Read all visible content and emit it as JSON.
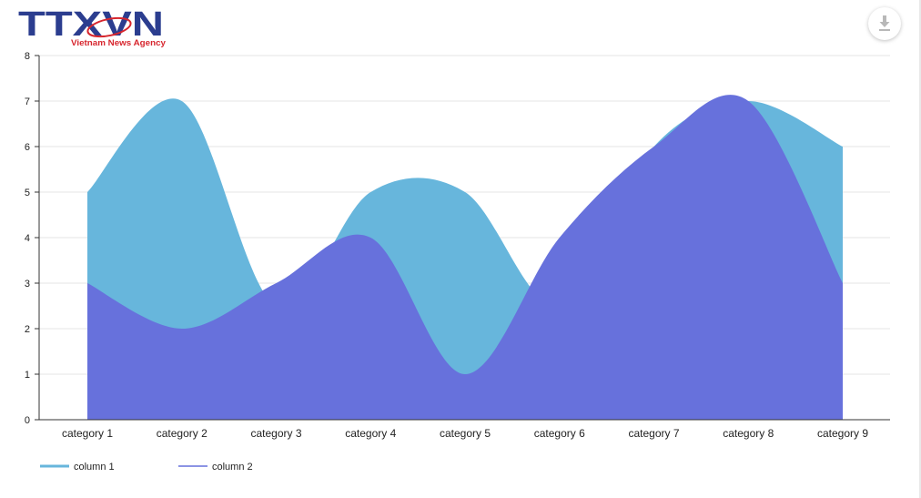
{
  "logo": {
    "brand": "TTXVN",
    "tagline": "Vietnam News Agency"
  },
  "toolbar": {
    "download_icon": "download-icon"
  },
  "colors": {
    "column_1": "#67b6dc",
    "column_2": "#6771dc",
    "grid": "#e6e6e6",
    "axis": "#333333"
  },
  "chart_data": {
    "type": "area",
    "smooth": true,
    "categories": [
      "category 1",
      "category 2",
      "category 3",
      "category 4",
      "category 5",
      "category 6",
      "category 7",
      "category 8",
      "category 9"
    ],
    "series": [
      {
        "name": "column 1",
        "values": [
          5,
          7,
          2.5,
          5,
          5,
          2.5,
          6,
          7,
          6
        ]
      },
      {
        "name": "column 2",
        "values": [
          3,
          2,
          3,
          4,
          1,
          4,
          6,
          7,
          3
        ]
      }
    ],
    "ylim": [
      0,
      8
    ],
    "yticks": [
      0,
      1,
      2,
      3,
      4,
      5,
      6,
      7,
      8
    ],
    "grid": true,
    "legend_position": "bottom-left",
    "title": "",
    "xlabel": "",
    "ylabel": ""
  }
}
